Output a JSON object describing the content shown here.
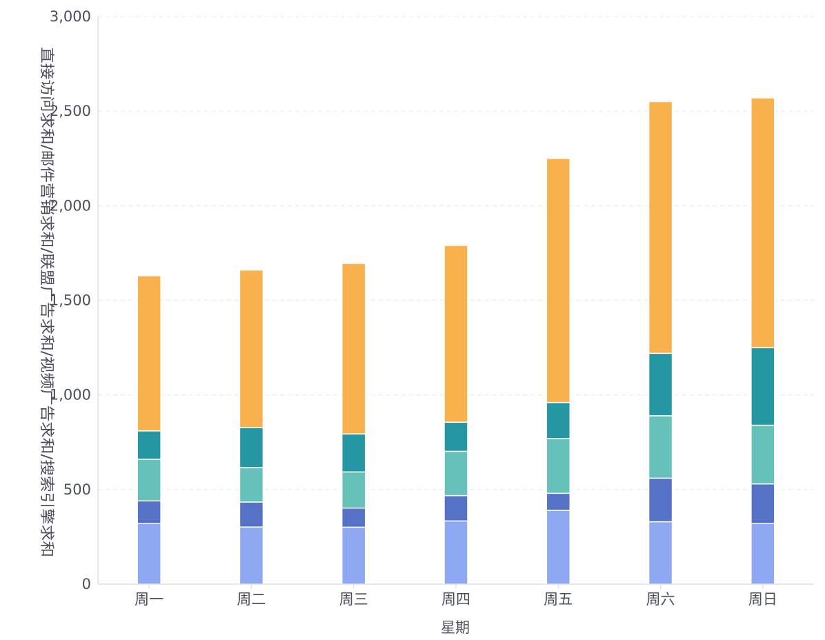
{
  "chart_data": {
    "type": "bar",
    "stacked": true,
    "xlabel": "星期",
    "ylabel": "直接访问求和/邮件营销求和/联盟广告求和/视频广告求和/搜索引擎求和",
    "ylim": [
      0,
      3000
    ],
    "yticks": [
      0,
      500,
      1000,
      1500,
      2000,
      2500,
      3000
    ],
    "ytick_labels": [
      "0",
      "500",
      "1,000",
      "1,500",
      "2,000",
      "2,500",
      "3,000"
    ],
    "grid": true,
    "categories": [
      "周一",
      "周二",
      "周三",
      "周四",
      "周五",
      "周六",
      "周日"
    ],
    "series": [
      {
        "color": "#8fa8f2",
        "values": [
          320,
          302,
          301,
          334,
          390,
          330,
          320
        ]
      },
      {
        "color": "#5572c6",
        "values": [
          120,
          132,
          101,
          134,
          90,
          230,
          210
        ]
      },
      {
        "color": "#66c1ba",
        "values": [
          220,
          182,
          191,
          234,
          290,
          330,
          310
        ]
      },
      {
        "color": "#2497a3",
        "values": [
          150,
          212,
          201,
          154,
          190,
          330,
          410
        ]
      },
      {
        "color": "#f8b14d",
        "values": [
          820,
          832,
          901,
          934,
          1290,
          1330,
          1320
        ]
      }
    ]
  }
}
